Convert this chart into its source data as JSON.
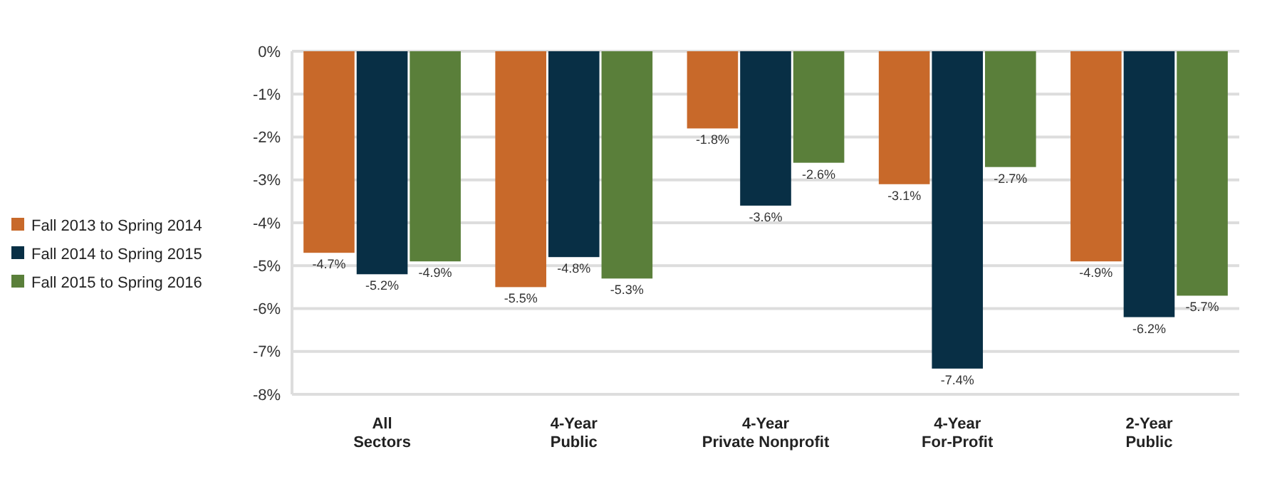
{
  "chart_data": {
    "type": "bar",
    "categories": [
      "All Sectors",
      "4-Year Public",
      "4-Year Private Nonprofit",
      "4-Year For-Profit",
      "2-Year Public"
    ],
    "series": [
      {
        "name": "Fall 2013 to Spring 2014",
        "color": "#c8692a",
        "values": [
          -4.7,
          -5.5,
          -1.8,
          -3.1,
          -4.9
        ],
        "value_labels": [
          "-4.7%",
          "-5.5%",
          "-1.8%",
          "-3.1%",
          "-4.9%"
        ]
      },
      {
        "name": "Fall 2014 to Spring 2015",
        "color": "#082f45",
        "values": [
          -5.2,
          -4.8,
          -3.6,
          -7.4,
          -6.2
        ],
        "value_labels": [
          "-5.2%",
          "-4.8%",
          "-3.6%",
          "-7.4%",
          "-6.2%"
        ]
      },
      {
        "name": "Fall 2015 to Spring 2016",
        "color": "#5a7f3a",
        "values": [
          -4.9,
          -5.3,
          -2.6,
          -2.7,
          -5.7
        ],
        "value_labels": [
          "-4.9%",
          "-5.3%",
          "-2.6%",
          "-2.7%",
          "-5.7%"
        ]
      }
    ],
    "ylim": [
      -8,
      0
    ],
    "yticks": [
      {
        "value": 0,
        "label": "0%"
      },
      {
        "value": -1,
        "label": "-1%"
      },
      {
        "value": -2,
        "label": "-2%"
      },
      {
        "value": -3,
        "label": "-3%"
      },
      {
        "value": -4,
        "label": "-4%"
      },
      {
        "value": -5,
        "label": "-5%"
      },
      {
        "value": -6,
        "label": "-6%"
      },
      {
        "value": -7,
        "label": "-7%"
      },
      {
        "value": -8,
        "label": "-8%"
      }
    ],
    "grid": "y",
    "legend": "left"
  }
}
